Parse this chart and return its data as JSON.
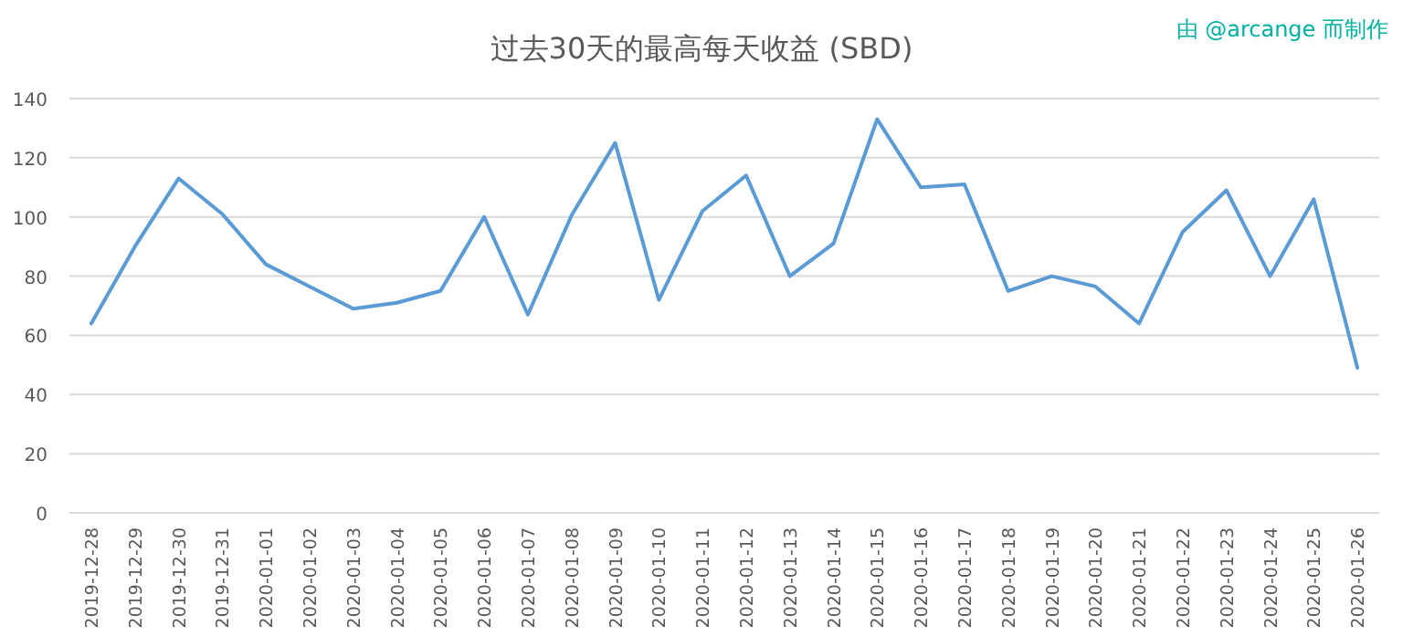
{
  "chart_data": {
    "type": "line",
    "title": "过去30天的最高每天收益 (SBD)",
    "annotations": [
      "由 @arcange 而制作"
    ],
    "categories": [
      "2019-12-28",
      "2019-12-29",
      "2019-12-30",
      "2019-12-31",
      "2020-01-01",
      "2020-01-02",
      "2020-01-03",
      "2020-01-04",
      "2020-01-05",
      "2020-01-06",
      "2020-01-07",
      "2020-01-08",
      "2020-01-09",
      "2020-01-10",
      "2020-01-11",
      "2020-01-12",
      "2020-01-13",
      "2020-01-14",
      "2020-01-15",
      "2020-01-16",
      "2020-01-17",
      "2020-01-18",
      "2020-01-19",
      "2020-01-20",
      "2020-01-21",
      "2020-01-22",
      "2020-01-23",
      "2020-01-24",
      "2020-01-25",
      "2020-01-26"
    ],
    "values": [
      64,
      90,
      113,
      101,
      84,
      76.5,
      69,
      71,
      75,
      100,
      67,
      100.5,
      125,
      72,
      102,
      114,
      80,
      91,
      133,
      110,
      111,
      75,
      80,
      76.5,
      64,
      95,
      109,
      80,
      106,
      49
    ],
    "color": "#5b9bd5",
    "ylim": [
      0,
      140
    ],
    "yticks": [
      0,
      20,
      40,
      60,
      80,
      100,
      120,
      140
    ],
    "grid": "y"
  }
}
